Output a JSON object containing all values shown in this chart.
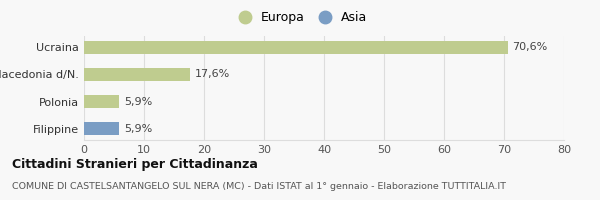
{
  "categories": [
    "Filippine",
    "Polonia",
    "Macedonia d/N.",
    "Ucraina"
  ],
  "values": [
    5.9,
    5.9,
    17.6,
    70.6
  ],
  "labels": [
    "5,9%",
    "5,9%",
    "17,6%",
    "70,6%"
  ],
  "colors": [
    "#7a9dc4",
    "#bfcc8f",
    "#bfcc8f",
    "#bfcc8f"
  ],
  "xlim": [
    0,
    80
  ],
  "xticks": [
    0,
    10,
    20,
    30,
    40,
    50,
    60,
    70,
    80
  ],
  "legend_europa_color": "#bfcc8f",
  "legend_asia_color": "#7a9dc4",
  "title": "Cittadini Stranieri per Cittadinanza",
  "subtitle": "COMUNE DI CASTELSANTANGELO SUL NERA (MC) - Dati ISTAT al 1° gennaio - Elaborazione TUTTITALIA.IT",
  "bar_height": 0.5,
  "background_color": "#f8f8f8",
  "grid_color": "#dddddd"
}
